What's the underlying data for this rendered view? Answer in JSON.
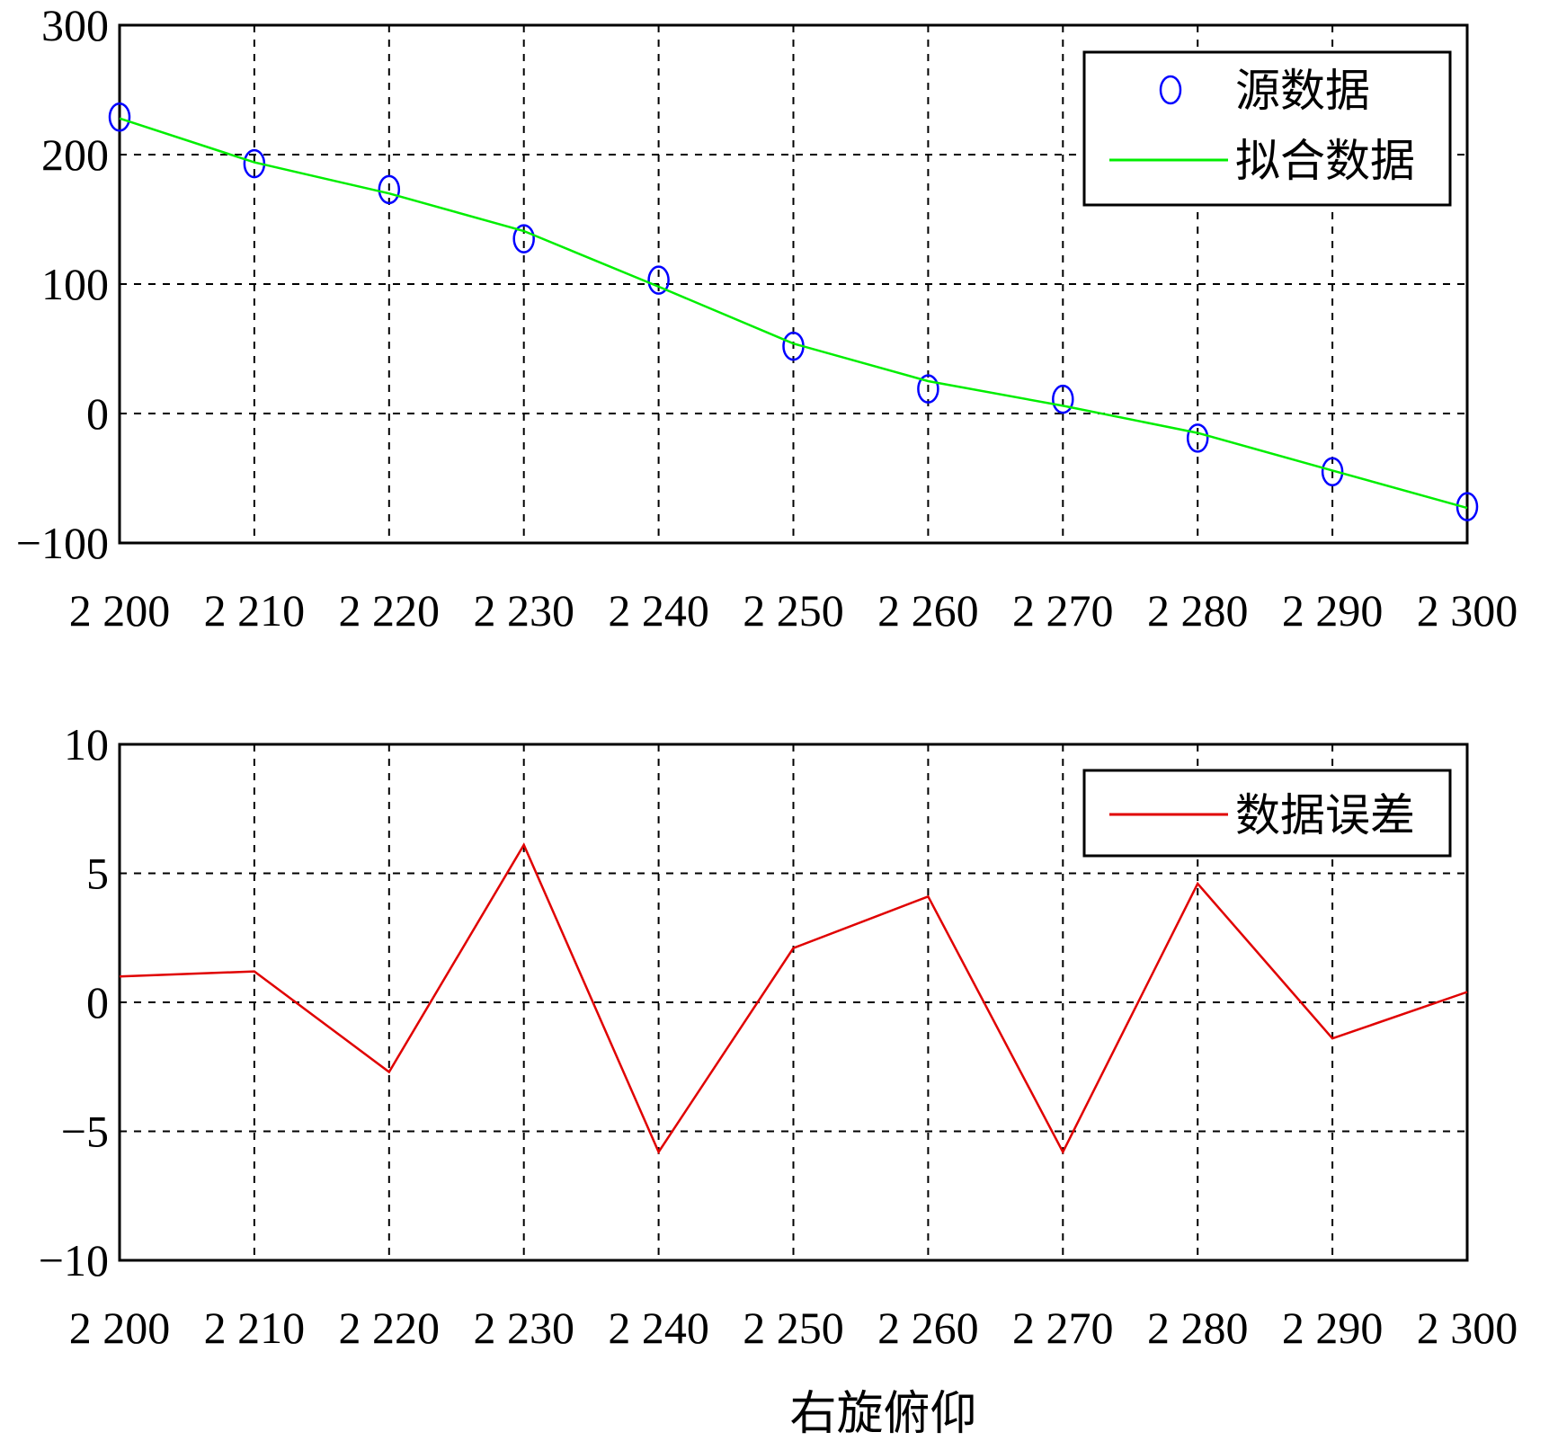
{
  "chart_data": [
    {
      "type": "line",
      "xlim": [
        2200,
        2300
      ],
      "ylim": [
        -100,
        300
      ],
      "x_ticks": [
        2200,
        2210,
        2220,
        2230,
        2240,
        2250,
        2260,
        2270,
        2280,
        2290,
        2300
      ],
      "x_tick_labels": [
        "2 200",
        "2 210",
        "2 220",
        "2 230",
        "2 240",
        "2 250",
        "2 260",
        "2 270",
        "2 280",
        "2 290",
        "2 300"
      ],
      "y_ticks": [
        -100,
        0,
        100,
        200,
        300
      ],
      "y_tick_labels": [
        "−100",
        "0",
        "100",
        "200",
        "300"
      ],
      "grid": true,
      "legend_position": "top-right",
      "series": [
        {
          "name": "源数据",
          "style": "markers",
          "marker": "circle",
          "color": "#0000ff",
          "x": [
            2200,
            2210,
            2220,
            2230,
            2240,
            2250,
            2260,
            2270,
            2280,
            2290,
            2300
          ],
          "y": [
            229,
            193,
            173,
            135,
            103,
            52,
            19,
            11,
            -19,
            -45,
            -72
          ]
        },
        {
          "name": "拟合数据",
          "style": "line",
          "color": "#00ee00",
          "x": [
            2200,
            2210,
            2220,
            2230,
            2240,
            2250,
            2260,
            2270,
            2280,
            2290,
            2300
          ],
          "y": [
            228,
            194,
            170,
            141,
            98,
            54,
            25,
            6,
            -15,
            -44,
            -73
          ]
        }
      ]
    },
    {
      "type": "line",
      "xlim": [
        2200,
        2300
      ],
      "ylim": [
        -10,
        10
      ],
      "x_ticks": [
        2200,
        2210,
        2220,
        2230,
        2240,
        2250,
        2260,
        2270,
        2280,
        2290,
        2300
      ],
      "x_tick_labels": [
        "2 200",
        "2 210",
        "2 220",
        "2 230",
        "2 240",
        "2 250",
        "2 260",
        "2 270",
        "2 280",
        "2 290",
        "2 300"
      ],
      "y_ticks": [
        -10,
        -5,
        0,
        5,
        10
      ],
      "y_tick_labels": [
        "−10",
        "−5",
        "0",
        "5",
        "10"
      ],
      "grid": true,
      "legend_position": "top-right",
      "xlabel": "右旋俯仰",
      "series": [
        {
          "name": "数据误差",
          "style": "line",
          "color": "#e00000",
          "x": [
            2200,
            2210,
            2220,
            2230,
            2240,
            2250,
            2260,
            2270,
            2280,
            2290,
            2300
          ],
          "y": [
            1.0,
            1.2,
            -2.7,
            6.1,
            -5.8,
            2.1,
            4.1,
            -5.8,
            4.6,
            -1.4,
            0.4
          ]
        }
      ]
    }
  ]
}
